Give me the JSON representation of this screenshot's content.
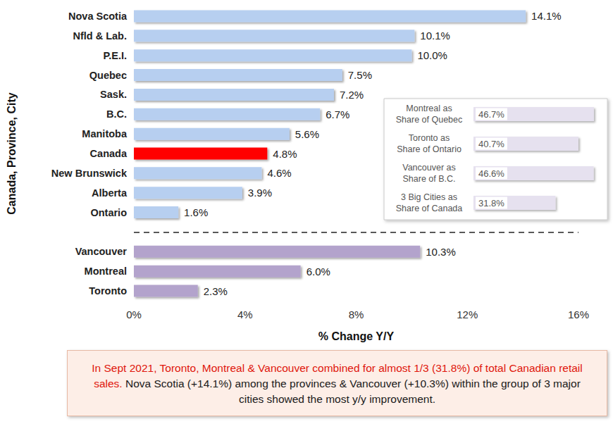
{
  "chart_data": [
    {
      "type": "bar",
      "orientation": "horizontal",
      "x_label": "% Change Y/Y",
      "y_label": "Canada, Province, City",
      "categories": [
        "Nova Scotia",
        "Nfld & Lab.",
        "P.E.I.",
        "Quebec",
        "Sask.",
        "B.C.",
        "Manitoba",
        "Canada",
        "New Brunswick",
        "Alberta",
        "Ontario",
        null,
        "Vancouver",
        "Montreal",
        "Toronto"
      ],
      "values": [
        14.1,
        10.1,
        10.0,
        7.5,
        7.2,
        6.7,
        5.6,
        4.8,
        4.6,
        3.9,
        1.6,
        null,
        10.3,
        6.0,
        2.3
      ],
      "value_labels": [
        "14.1%",
        "10.1%",
        "10.0%",
        "7.5%",
        "7.2%",
        "6.7%",
        "5.6%",
        "4.8%",
        "4.6%",
        "3.9%",
        "1.6%",
        null,
        "10.3%",
        "6.0%",
        "2.3%"
      ],
      "colors": [
        "#b7cff0",
        "#b7cff0",
        "#b7cff0",
        "#b7cff0",
        "#b7cff0",
        "#b7cff0",
        "#b7cff0",
        "#ff0000",
        "#b7cff0",
        "#b7cff0",
        "#b7cff0",
        null,
        "#b3a3cc",
        "#b3a3cc",
        "#b3a3cc"
      ],
      "data_labels": true,
      "xlim": [
        0,
        16
      ],
      "xticks": [
        {
          "value": 0,
          "label": "0%"
        },
        {
          "value": 4,
          "label": "4%"
        },
        {
          "value": 8,
          "label": "8%"
        },
        {
          "value": 12,
          "label": "12%"
        },
        {
          "value": 16,
          "label": "16%"
        }
      ],
      "grid": false,
      "annotations": [
        "In Sept 2021, Toronto, Montreal & Vancouver combined for almost 1/3 (31.8%) of total Canadian retail sales.",
        "Nova Scotia (+14.1%) among the provinces & Vancouver (+10.3%) within the group of 3 major cities showed the most y/y improvement."
      ]
    },
    {
      "type": "bar",
      "orientation": "horizontal",
      "categories": [
        "Montreal as\nShare of Quebec",
        "Toronto as\nShare of Ontario",
        "Vancouver as\nShare of B.C.",
        "3 Big Cities as\nShare of Canada"
      ],
      "values": [
        46.7,
        40.7,
        46.6,
        31.8
      ],
      "value_labels": [
        "46.7%",
        "40.7%",
        "46.6%",
        "31.8%"
      ],
      "color": "#e6e1ef",
      "data_labels": true,
      "xlim": [
        0,
        50
      ],
      "tick_labels": false,
      "grid": false
    }
  ]
}
